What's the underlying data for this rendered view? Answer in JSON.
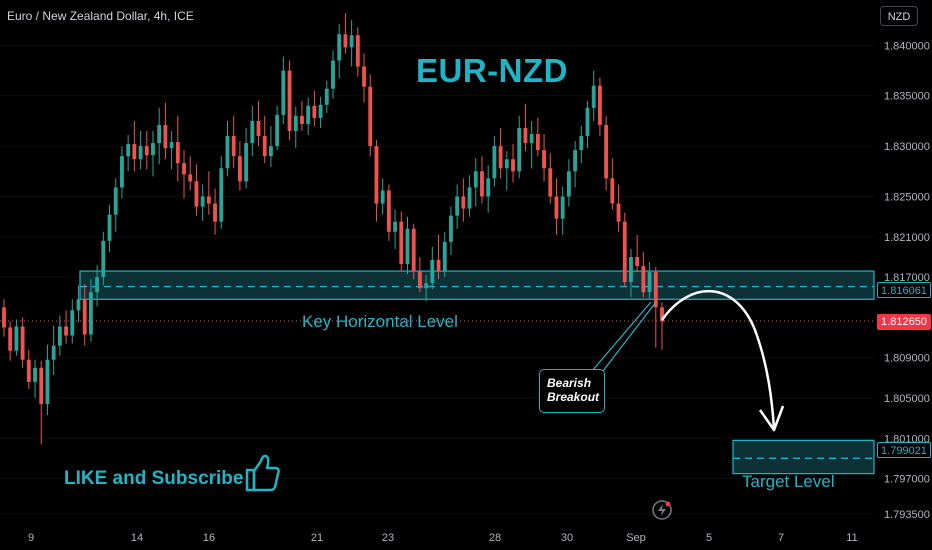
{
  "legend": "Euro / New Zealand Dollar, 4h, ICE",
  "currency_button": "NZD",
  "title": "EUR-NZD",
  "key_level_label": "Key Horizontal Level",
  "target_level_label": "Target Level",
  "like_text": "LIKE and Subscribe",
  "callout": {
    "line1": "Bearish",
    "line2": "Breakout"
  },
  "price_tags": {
    "key_level": "1.816061",
    "current": "1.812650",
    "target": "1.799021"
  },
  "colors": {
    "accent": "#1fb5c9",
    "bull": "#26a69a",
    "bear": "#ef5350",
    "current_tag": "#f23645",
    "zone_fill": "#0e3a40"
  },
  "icons": [
    "thumbs-up-icon",
    "flash-icon"
  ],
  "chart_data": {
    "type": "candlestick",
    "title": "EUR-NZD",
    "timeframe": "4h",
    "y_axis": {
      "range": [
        1.7925,
        1.8445
      ],
      "ticks": [
        "1.840000",
        "1.835000",
        "1.830000",
        "1.825000",
        "1.821000",
        "1.817000",
        "1.809000",
        "1.805000",
        "1.801000",
        "1.797000",
        "1.793500"
      ]
    },
    "x_axis": {
      "ticks": [
        "9",
        "14",
        "16",
        "21",
        "23",
        "28",
        "30",
        "Sep",
        "5",
        "7",
        "11"
      ]
    },
    "key_zone": {
      "low": 1.8148,
      "high": 1.8176,
      "level": 1.816061
    },
    "target_zone": {
      "low": 1.7975,
      "high": 1.8008,
      "level": 1.799021
    },
    "current_price": 1.81265,
    "ohlc": [
      [
        1.814,
        1.8148,
        1.8111,
        1.812
      ],
      [
        1.812,
        1.8126,
        1.8087,
        1.8097
      ],
      [
        1.8097,
        1.8128,
        1.8092,
        1.8121
      ],
      [
        1.8121,
        1.813,
        1.808,
        1.8088
      ],
      [
        1.8088,
        1.8098,
        1.8059,
        1.8066
      ],
      [
        1.8066,
        1.8088,
        1.805,
        1.808
      ],
      [
        1.808,
        1.8087,
        1.8004,
        1.8044
      ],
      [
        1.8044,
        1.8103,
        1.8033,
        1.8088
      ],
      [
        1.8088,
        1.8122,
        1.8073,
        1.8102
      ],
      [
        1.8102,
        1.8132,
        1.8092,
        1.8121
      ],
      [
        1.8121,
        1.8137,
        1.8104,
        1.8112
      ],
      [
        1.8112,
        1.8148,
        1.8104,
        1.8137
      ],
      [
        1.8137,
        1.8162,
        1.8125,
        1.8148
      ],
      [
        1.8148,
        1.8163,
        1.8102,
        1.8113
      ],
      [
        1.8113,
        1.8168,
        1.8106,
        1.8155
      ],
      [
        1.8155,
        1.8182,
        1.8141,
        1.817
      ],
      [
        1.817,
        1.8215,
        1.8162,
        1.8206
      ],
      [
        1.8206,
        1.8242,
        1.8195,
        1.8232
      ],
      [
        1.8232,
        1.8268,
        1.8215,
        1.8259
      ],
      [
        1.8259,
        1.83,
        1.8248,
        1.829
      ],
      [
        1.829,
        1.8311,
        1.8275,
        1.8302
      ],
      [
        1.8302,
        1.8325,
        1.8275,
        1.8287
      ],
      [
        1.8287,
        1.8315,
        1.8277,
        1.83
      ],
      [
        1.83,
        1.8315,
        1.8277,
        1.8291
      ],
      [
        1.8291,
        1.8315,
        1.827,
        1.8303
      ],
      [
        1.8303,
        1.8338,
        1.8282,
        1.8321
      ],
      [
        1.8321,
        1.8343,
        1.8287,
        1.8298
      ],
      [
        1.8298,
        1.8315,
        1.8277,
        1.8304
      ],
      [
        1.8304,
        1.833,
        1.8265,
        1.8283
      ],
      [
        1.8283,
        1.8296,
        1.8248,
        1.8272
      ],
      [
        1.8272,
        1.829,
        1.8256,
        1.8265
      ],
      [
        1.8265,
        1.8282,
        1.8231,
        1.824
      ],
      [
        1.824,
        1.8262,
        1.8226,
        1.825
      ],
      [
        1.825,
        1.8275,
        1.8232,
        1.8243
      ],
      [
        1.8243,
        1.8258,
        1.8212,
        1.8225
      ],
      [
        1.8225,
        1.829,
        1.8218,
        1.8278
      ],
      [
        1.8278,
        1.8325,
        1.827,
        1.831
      ],
      [
        1.831,
        1.833,
        1.8278,
        1.829
      ],
      [
        1.829,
        1.8305,
        1.8256,
        1.8265
      ],
      [
        1.8265,
        1.8318,
        1.8258,
        1.8303
      ],
      [
        1.8303,
        1.834,
        1.829,
        1.8325
      ],
      [
        1.8325,
        1.8345,
        1.83,
        1.831
      ],
      [
        1.831,
        1.833,
        1.8283,
        1.829
      ],
      [
        1.829,
        1.832,
        1.8279,
        1.83
      ],
      [
        1.83,
        1.834,
        1.8296,
        1.8331
      ],
      [
        1.8331,
        1.8389,
        1.8322,
        1.8375
      ],
      [
        1.8375,
        1.8385,
        1.8306,
        1.8315
      ],
      [
        1.8315,
        1.8339,
        1.8298,
        1.833
      ],
      [
        1.833,
        1.8345,
        1.8315,
        1.8322
      ],
      [
        1.8322,
        1.8348,
        1.8311,
        1.834
      ],
      [
        1.834,
        1.8355,
        1.832,
        1.8328
      ],
      [
        1.8328,
        1.8349,
        1.8318,
        1.8341
      ],
      [
        1.8341,
        1.8365,
        1.8333,
        1.8357
      ],
      [
        1.8357,
        1.8395,
        1.8347,
        1.8385
      ],
      [
        1.8385,
        1.8421,
        1.8367,
        1.8411
      ],
      [
        1.8411,
        1.8432,
        1.8392,
        1.8398
      ],
      [
        1.8398,
        1.8425,
        1.8379,
        1.841
      ],
      [
        1.841,
        1.8418,
        1.8369,
        1.8379
      ],
      [
        1.8379,
        1.8392,
        1.8343,
        1.8359
      ],
      [
        1.8359,
        1.8371,
        1.829,
        1.83
      ],
      [
        1.83,
        1.8306,
        1.8225,
        1.8243
      ],
      [
        1.8243,
        1.8268,
        1.8232,
        1.8256
      ],
      [
        1.8256,
        1.8262,
        1.8206,
        1.8215
      ],
      [
        1.8215,
        1.8237,
        1.8198,
        1.8225
      ],
      [
        1.8225,
        1.8235,
        1.8176,
        1.8183
      ],
      [
        1.8183,
        1.823,
        1.8173,
        1.8218
      ],
      [
        1.8218,
        1.8223,
        1.8168,
        1.8176
      ],
      [
        1.8176,
        1.819,
        1.8155,
        1.8159
      ],
      [
        1.8159,
        1.8172,
        1.8146,
        1.8164
      ],
      [
        1.8164,
        1.82,
        1.8158,
        1.8187
      ],
      [
        1.8187,
        1.8212,
        1.8168,
        1.8176
      ],
      [
        1.8176,
        1.8215,
        1.817,
        1.8205
      ],
      [
        1.8205,
        1.824,
        1.8192,
        1.8231
      ],
      [
        1.8231,
        1.8262,
        1.8218,
        1.825
      ],
      [
        1.825,
        1.8268,
        1.8225,
        1.8238
      ],
      [
        1.8238,
        1.8271,
        1.823,
        1.8259
      ],
      [
        1.8259,
        1.8288,
        1.824,
        1.8275
      ],
      [
        1.8275,
        1.829,
        1.8243,
        1.825
      ],
      [
        1.825,
        1.8281,
        1.8234,
        1.8268
      ],
      [
        1.8268,
        1.831,
        1.826,
        1.83
      ],
      [
        1.83,
        1.8318,
        1.8268,
        1.8278
      ],
      [
        1.8278,
        1.8295,
        1.8256,
        1.8287
      ],
      [
        1.8287,
        1.8302,
        1.8264,
        1.8275
      ],
      [
        1.8275,
        1.833,
        1.8268,
        1.8318
      ],
      [
        1.8318,
        1.8342,
        1.8295,
        1.8303
      ],
      [
        1.8303,
        1.8325,
        1.8278,
        1.8312
      ],
      [
        1.8312,
        1.8328,
        1.829,
        1.8296
      ],
      [
        1.8296,
        1.8312,
        1.8265,
        1.8278
      ],
      [
        1.8278,
        1.8293,
        1.8243,
        1.825
      ],
      [
        1.825,
        1.8268,
        1.8212,
        1.8228
      ],
      [
        1.8228,
        1.826,
        1.8212,
        1.825
      ],
      [
        1.825,
        1.8287,
        1.824,
        1.8275
      ],
      [
        1.8275,
        1.8305,
        1.8259,
        1.8296
      ],
      [
        1.8296,
        1.832,
        1.8283,
        1.831
      ],
      [
        1.831,
        1.8345,
        1.8298,
        1.8338
      ],
      [
        1.8338,
        1.8375,
        1.8325,
        1.836
      ],
      [
        1.836,
        1.8368,
        1.831,
        1.8321
      ],
      [
        1.8321,
        1.833,
        1.8256,
        1.8268
      ],
      [
        1.8268,
        1.8288,
        1.8237,
        1.8243
      ],
      [
        1.8243,
        1.8262,
        1.8215,
        1.8225
      ],
      [
        1.8225,
        1.8234,
        1.816,
        1.8165
      ],
      [
        1.8165,
        1.8198,
        1.815,
        1.819
      ],
      [
        1.819,
        1.8212,
        1.8175,
        1.8181
      ],
      [
        1.8181,
        1.8195,
        1.815,
        1.8155
      ],
      [
        1.8155,
        1.8185,
        1.8149,
        1.8175
      ],
      [
        1.8175,
        1.818,
        1.81,
        1.814
      ],
      [
        1.814,
        1.8145,
        1.8098,
        1.8126
      ]
    ]
  }
}
